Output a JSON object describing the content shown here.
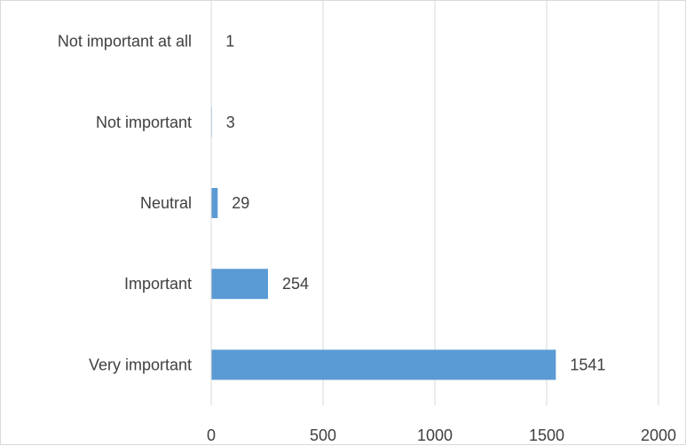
{
  "chart_data": {
    "type": "bar",
    "orientation": "horizontal",
    "title": "",
    "xlabel": "",
    "ylabel": "",
    "categories": [
      "Very important",
      "Important",
      "Neutral",
      "Not important",
      "Not important at all"
    ],
    "values": [
      1541,
      254,
      29,
      3,
      1
    ],
    "xlim": [
      0,
      2000
    ],
    "x_ticks": [
      "0",
      "500",
      "1000",
      "1500",
      "2000"
    ],
    "grid": "vertical",
    "legend": "none",
    "data_labels": true,
    "bar_color": "#5b9bd5",
    "grid_color": "#d9d9d9",
    "text_color": "#404040"
  }
}
